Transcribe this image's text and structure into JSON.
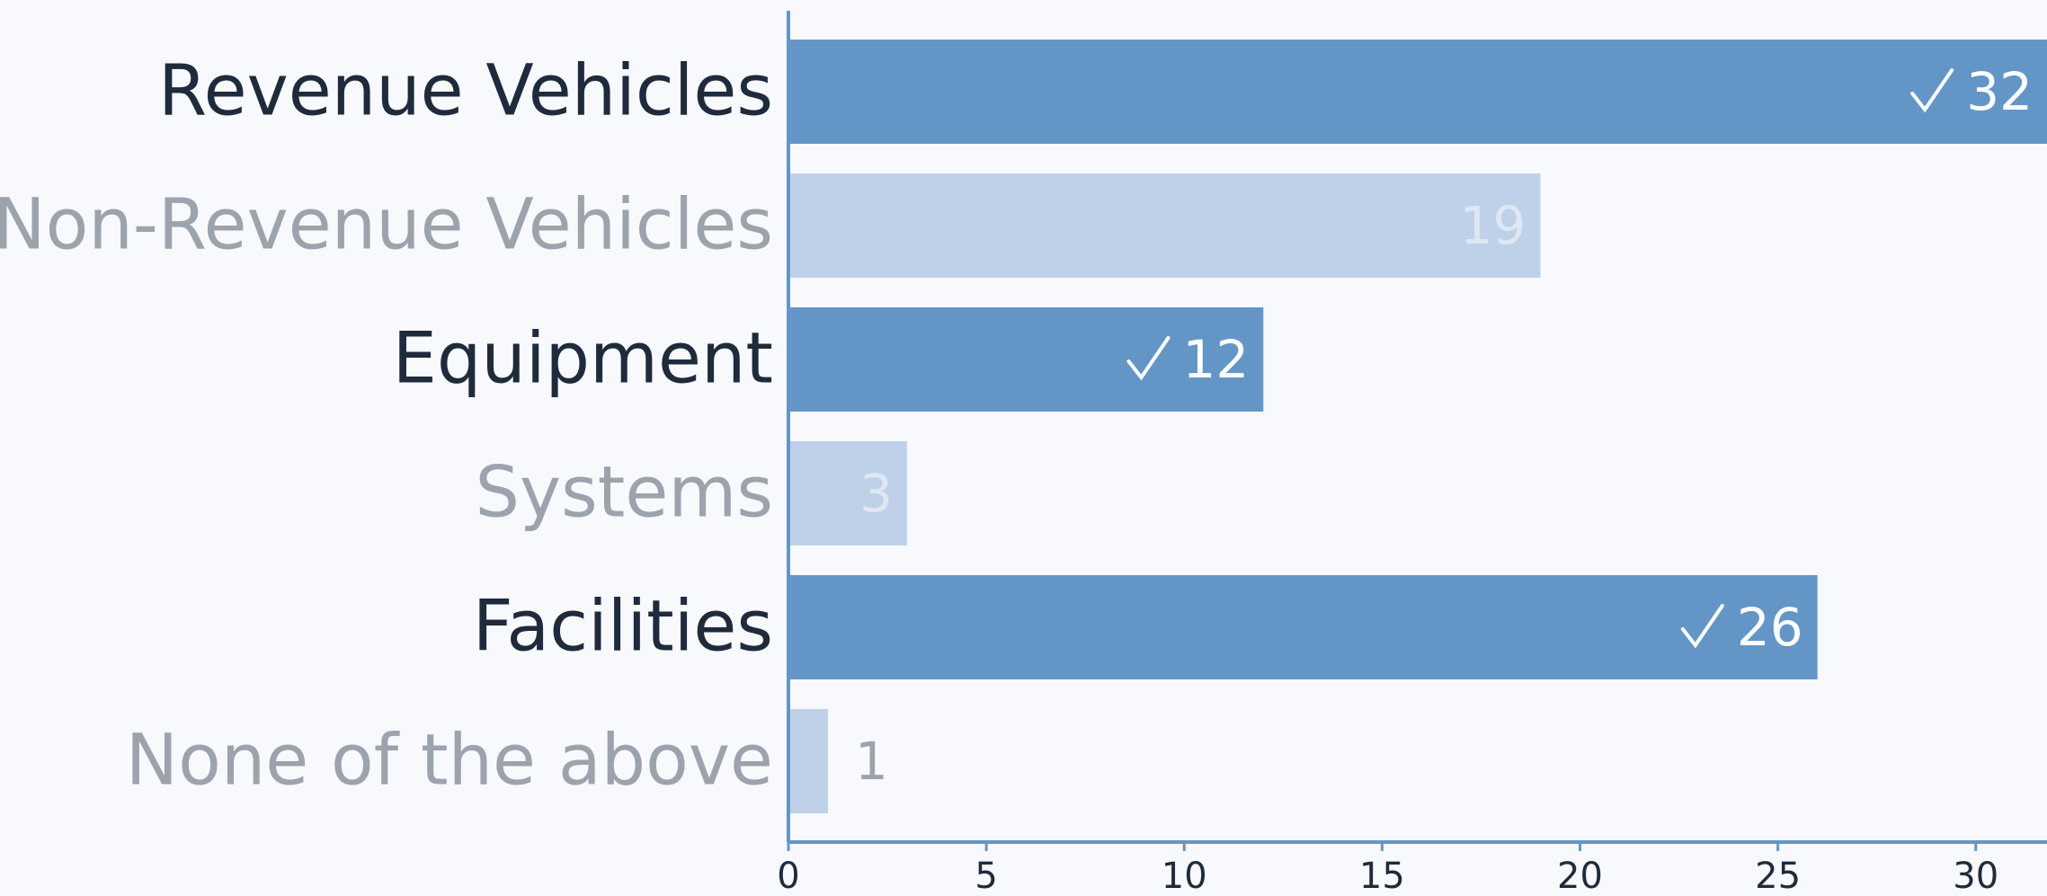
{
  "chart_data": {
    "type": "hbar",
    "categories": [
      "Revenue Vehicles",
      "Non-Revenue Vehicles",
      "Equipment",
      "Systems",
      "Facilities",
      "None of the above"
    ],
    "values": [
      32,
      19,
      12,
      3,
      26,
      1
    ],
    "highlighted": [
      true,
      false,
      true,
      false,
      true,
      false
    ],
    "color": "#6396c6",
    "muted_color": "#bfd1e8",
    "xlim": [
      0,
      31.8
    ],
    "xticks": [
      0,
      5,
      10,
      15,
      20,
      25,
      30
    ]
  }
}
